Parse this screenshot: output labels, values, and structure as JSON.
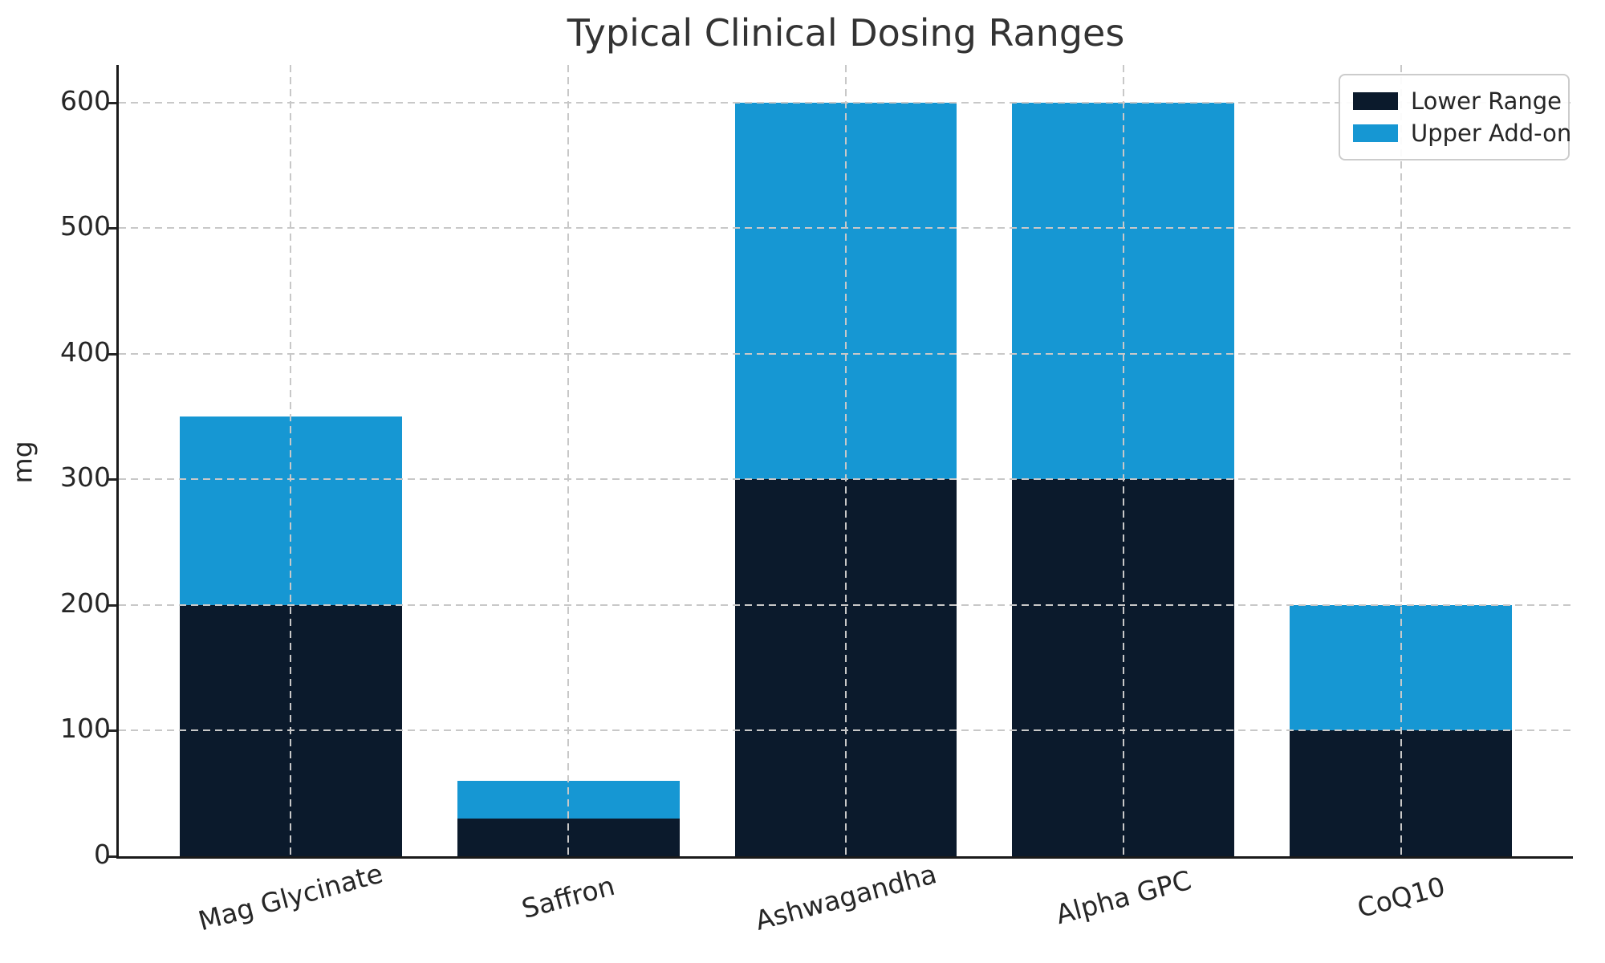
{
  "chart_data": {
    "type": "bar",
    "stacked": true,
    "title": "Typical Clinical Dosing Ranges",
    "xlabel": "",
    "ylabel": "mg",
    "categories": [
      "Mag Glycinate",
      "Saffron",
      "Ashwagandha",
      "Alpha GPC",
      "CoQ10"
    ],
    "series": [
      {
        "name": "Lower Range",
        "color": "#0b1a2c",
        "values": [
          200,
          30,
          300,
          300,
          100
        ]
      },
      {
        "name": "Upper Add-on",
        "color": "#1697d3",
        "values": [
          150,
          30,
          300,
          300,
          100
        ]
      }
    ],
    "totals": [
      350,
      60,
      600,
      600,
      200
    ],
    "ylim": [
      0,
      630
    ],
    "yticks": [
      0,
      100,
      200,
      300,
      400,
      500,
      600
    ],
    "grid": "dashed, horizontal and vertical, drawn over bars",
    "legend_position": "upper right",
    "legend_entries": [
      "Lower Range",
      "Upper Add-on"
    ]
  },
  "colors": {
    "lower_range": "#0b1a2c",
    "upper_addon": "#1697d3",
    "gridline": "#c8c8c8",
    "spine": "#1a1a1a",
    "text": "#262626",
    "title": "#333333",
    "background": "#ffffff"
  }
}
